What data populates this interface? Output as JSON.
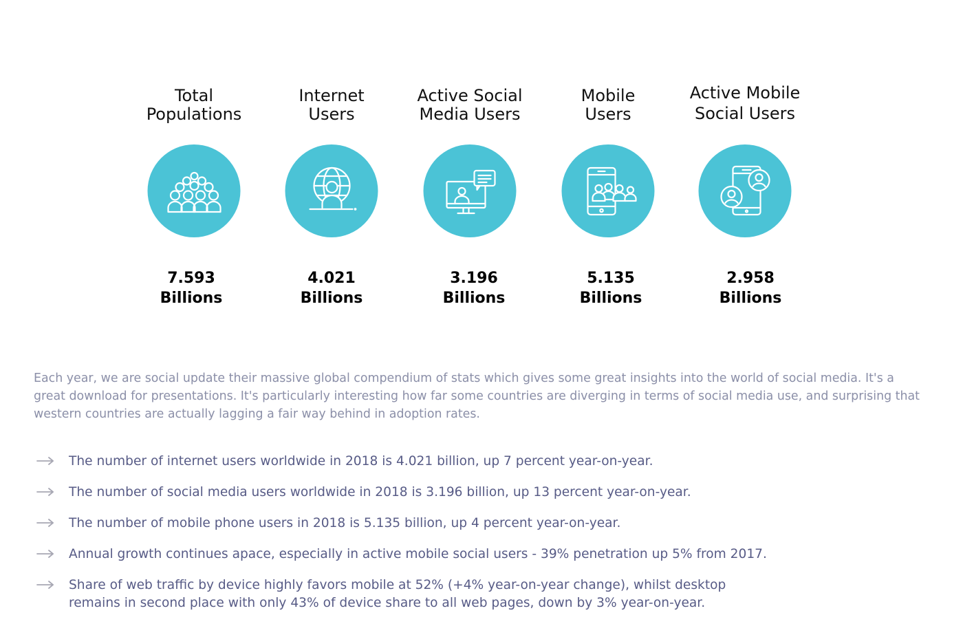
{
  "stats": [
    {
      "label_line1": "Total",
      "label_line2": "Populations",
      "value": "7.593",
      "unit": "Billions",
      "icon": "crowd-icon"
    },
    {
      "label_line1": "Internet",
      "label_line2": "Users",
      "value": "4.021",
      "unit": "Billions",
      "icon": "globe-user-icon"
    },
    {
      "label_line1": "Active Social",
      "label_line2": "Media Users",
      "value": "3.196",
      "unit": "Billions",
      "icon": "monitor-chat-icon"
    },
    {
      "label_line1": "Mobile",
      "label_line2": "Users",
      "value": "5.135",
      "unit": "Billions",
      "icon": "phone-group-icon"
    },
    {
      "label_line1": "Active Mobile",
      "label_line2": "Social Users",
      "value": "2.958",
      "unit": "Billions",
      "icon": "phone-profiles-icon"
    }
  ],
  "intro": "Each year, we are social update their massive global compendium of stats which gives some great insights into the world of social media. It's a great download for presentations. It's particularly interesting how far some countries are diverging in terms of social media use, and surprising that western countries are actually lagging a fair way behind in adoption rates.",
  "bullets": [
    "The number of internet users worldwide in 2018 is 4.021 billion, up 7 percent year-on-year.",
    "The number of social media users worldwide in 2018 is 3.196 billion, up 13 percent year-on-year.",
    "The number of mobile phone users in 2018 is 5.135 billion, up 4 percent year-on-year.",
    "Annual growth continues apace, especially in active mobile social users - 39% penetration up 5% from 2017.",
    "Share of web traffic by device highly favors mobile at 52% (+4% year-on-year change), whilst desktop remains in second place with only 43% of device share to all web pages, down by 3% year-on-year."
  ],
  "colors": {
    "accent": "#4bc3d6",
    "body_text": "#8b8fa8",
    "bullet_text": "#575b86",
    "arrow": "#a7a7b3"
  }
}
